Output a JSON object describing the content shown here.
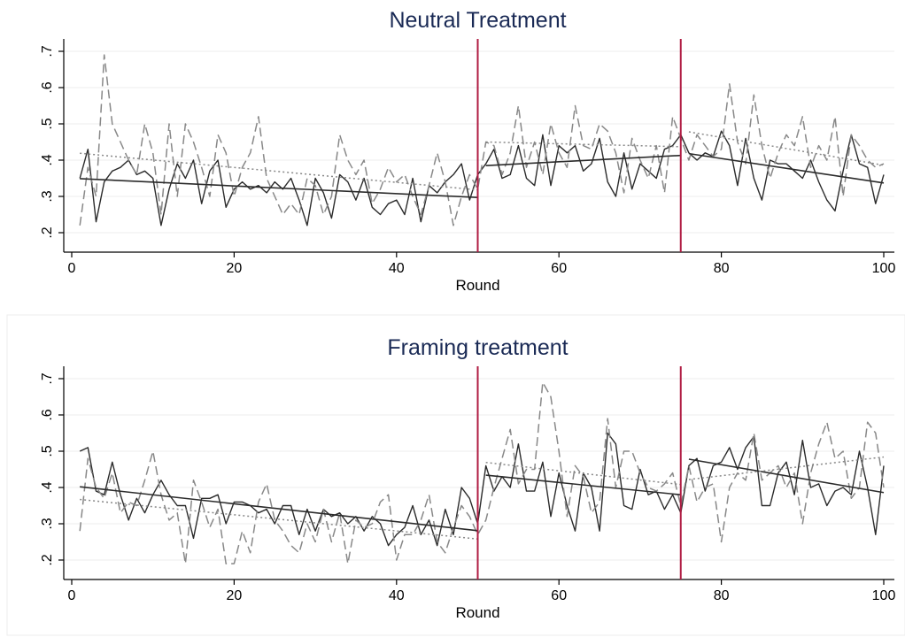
{
  "chart_data": [
    {
      "type": "line",
      "title": "Neutral Treatment",
      "xlabel": "Round",
      "ylabel": "",
      "xlim": [
        0,
        100
      ],
      "ylim": [
        0.2,
        0.7
      ],
      "x_ticks": [
        0,
        20,
        40,
        60,
        80,
        100
      ],
      "y_ticks": [
        0.2,
        0.3,
        0.4,
        0.5,
        0.6,
        0.7
      ],
      "x_tick_labels": [
        "0",
        "20",
        "40",
        "60",
        "80",
        "100"
      ],
      "y_tick_labels": [
        ".2",
        ".3",
        ".4",
        ".5",
        ".6",
        ".7"
      ],
      "grid": true,
      "vlines": [
        50,
        75
      ],
      "series": [
        {
          "style": "solid",
          "color": "#2b2b2b",
          "x_start": 1,
          "values": [
            0.35,
            0.43,
            0.23,
            0.34,
            0.37,
            0.38,
            0.4,
            0.36,
            0.37,
            0.35,
            0.22,
            0.32,
            0.39,
            0.35,
            0.4,
            0.28,
            0.37,
            0.4,
            0.27,
            0.32,
            0.34,
            0.32,
            0.33,
            0.31,
            0.34,
            0.32,
            0.35,
            0.29,
            0.22,
            0.35,
            0.31,
            0.24,
            0.36,
            0.34,
            0.29,
            0.35,
            0.27,
            0.25,
            0.28,
            0.29,
            0.25,
            0.35,
            0.23,
            0.33,
            0.31,
            0.34,
            0.36,
            0.39,
            0.29,
            0.36,
            0.39,
            0.43,
            0.35,
            0.36,
            0.44,
            0.35,
            0.33,
            0.47,
            0.33,
            0.44,
            0.42,
            0.44,
            0.37,
            0.39,
            0.46,
            0.34,
            0.3,
            0.42,
            0.32,
            0.39,
            0.37,
            0.35,
            0.43,
            0.44,
            0.47,
            0.42,
            0.4,
            0.42,
            0.41,
            0.48,
            0.44,
            0.33,
            0.46,
            0.35,
            0.29,
            0.4,
            0.39,
            0.39,
            0.37,
            0.35,
            0.4,
            0.34,
            0.29,
            0.26,
            0.37,
            0.47,
            0.39,
            0.38,
            0.28,
            0.36
          ]
        },
        {
          "style": "dashed",
          "color": "#888888",
          "x_start": 1,
          "values": [
            0.22,
            0.38,
            0.3,
            0.69,
            0.5,
            0.45,
            0.4,
            0.36,
            0.5,
            0.42,
            0.25,
            0.5,
            0.3,
            0.5,
            0.45,
            0.38,
            0.3,
            0.47,
            0.42,
            0.3,
            0.38,
            0.42,
            0.52,
            0.35,
            0.3,
            0.25,
            0.28,
            0.25,
            0.35,
            0.33,
            0.25,
            0.3,
            0.47,
            0.4,
            0.36,
            0.4,
            0.28,
            0.32,
            0.38,
            0.34,
            0.36,
            0.3,
            0.25,
            0.33,
            0.42,
            0.34,
            0.22,
            0.3,
            0.36,
            0.32,
            0.45,
            0.44,
            0.36,
            0.42,
            0.55,
            0.38,
            0.45,
            0.36,
            0.5,
            0.42,
            0.38,
            0.55,
            0.44,
            0.43,
            0.5,
            0.48,
            0.42,
            0.31,
            0.46,
            0.4,
            0.35,
            0.44,
            0.31,
            0.52,
            0.46,
            0.4,
            0.47,
            0.44,
            0.41,
            0.43,
            0.61,
            0.45,
            0.39,
            0.58,
            0.44,
            0.35,
            0.42,
            0.47,
            0.44,
            0.52,
            0.38,
            0.44,
            0.4,
            0.52,
            0.3,
            0.47,
            0.44,
            0.4,
            0.38,
            0.39
          ]
        },
        {
          "style": "solid-fit",
          "color": "#2b2b2b",
          "segments": [
            [
              1,
              0.349,
              50,
              0.297
            ],
            [
              51,
              0.385,
              75,
              0.413
            ],
            [
              76,
              0.418,
              100,
              0.337
            ]
          ]
        },
        {
          "style": "dotted-fit",
          "color": "#888888",
          "segments": [
            [
              1,
              0.419,
              50,
              0.318
            ],
            [
              51,
              0.45,
              75,
              0.437
            ],
            [
              76,
              0.478,
              100,
              0.386
            ]
          ]
        }
      ]
    },
    {
      "type": "line",
      "title": "Framing treatment",
      "xlabel": "Round",
      "ylabel": "",
      "xlim": [
        0,
        100
      ],
      "ylim": [
        0.2,
        0.7
      ],
      "x_ticks": [
        0,
        20,
        40,
        60,
        80,
        100
      ],
      "y_ticks": [
        0.2,
        0.3,
        0.4,
        0.5,
        0.6,
        0.7
      ],
      "x_tick_labels": [
        "0",
        "20",
        "40",
        "60",
        "80",
        "100"
      ],
      "y_tick_labels": [
        ".2",
        ".3",
        ".4",
        ".5",
        ".6",
        ".7"
      ],
      "grid": true,
      "vlines": [
        50,
        75
      ],
      "series": [
        {
          "style": "solid",
          "color": "#2b2b2b",
          "x_start": 1,
          "values": [
            0.5,
            0.51,
            0.39,
            0.38,
            0.47,
            0.38,
            0.31,
            0.37,
            0.33,
            0.38,
            0.42,
            0.38,
            0.35,
            0.35,
            0.26,
            0.37,
            0.37,
            0.38,
            0.3,
            0.36,
            0.36,
            0.35,
            0.33,
            0.34,
            0.3,
            0.35,
            0.35,
            0.27,
            0.34,
            0.28,
            0.34,
            0.32,
            0.33,
            0.3,
            0.32,
            0.28,
            0.32,
            0.3,
            0.24,
            0.27,
            0.29,
            0.35,
            0.27,
            0.31,
            0.24,
            0.34,
            0.27,
            0.4,
            0.37,
            0.3,
            0.46,
            0.39,
            0.43,
            0.4,
            0.52,
            0.39,
            0.39,
            0.47,
            0.32,
            0.44,
            0.35,
            0.28,
            0.44,
            0.4,
            0.28,
            0.55,
            0.52,
            0.35,
            0.34,
            0.45,
            0.38,
            0.39,
            0.34,
            0.38,
            0.33,
            0.46,
            0.48,
            0.39,
            0.46,
            0.47,
            0.51,
            0.45,
            0.51,
            0.54,
            0.35,
            0.35,
            0.44,
            0.47,
            0.38,
            0.53,
            0.4,
            0.41,
            0.35,
            0.39,
            0.4,
            0.38,
            0.5,
            0.4,
            0.27,
            0.46
          ]
        },
        {
          "style": "dashed",
          "color": "#888888",
          "x_start": 1,
          "values": [
            0.28,
            0.48,
            0.4,
            0.37,
            0.44,
            0.33,
            0.36,
            0.35,
            0.42,
            0.5,
            0.38,
            0.31,
            0.33,
            0.19,
            0.42,
            0.36,
            0.29,
            0.34,
            0.19,
            0.19,
            0.28,
            0.22,
            0.36,
            0.41,
            0.31,
            0.28,
            0.24,
            0.22,
            0.3,
            0.25,
            0.34,
            0.25,
            0.33,
            0.19,
            0.31,
            0.29,
            0.3,
            0.36,
            0.38,
            0.2,
            0.27,
            0.27,
            0.31,
            0.38,
            0.25,
            0.22,
            0.29,
            0.35,
            0.32,
            0.27,
            0.31,
            0.4,
            0.48,
            0.56,
            0.41,
            0.45,
            0.45,
            0.69,
            0.65,
            0.5,
            0.32,
            0.46,
            0.43,
            0.33,
            0.36,
            0.59,
            0.4,
            0.5,
            0.5,
            0.44,
            0.4,
            0.39,
            0.41,
            0.44,
            0.35,
            0.46,
            0.36,
            0.4,
            0.41,
            0.25,
            0.4,
            0.44,
            0.42,
            0.55,
            0.42,
            0.44,
            0.46,
            0.4,
            0.44,
            0.3,
            0.44,
            0.52,
            0.58,
            0.48,
            0.5,
            0.37,
            0.4,
            0.58,
            0.55,
            0.4
          ]
        },
        {
          "style": "solid-fit",
          "color": "#2b2b2b",
          "segments": [
            [
              1,
              0.402,
              50,
              0.281
            ],
            [
              51,
              0.434,
              75,
              0.38
            ],
            [
              76,
              0.478,
              100,
              0.386
            ]
          ]
        },
        {
          "style": "dotted-fit",
          "color": "#888888",
          "segments": [
            [
              1,
              0.367,
              50,
              0.258
            ],
            [
              51,
              0.469,
              75,
              0.408
            ],
            [
              76,
              0.422,
              100,
              0.484
            ]
          ]
        }
      ]
    }
  ]
}
